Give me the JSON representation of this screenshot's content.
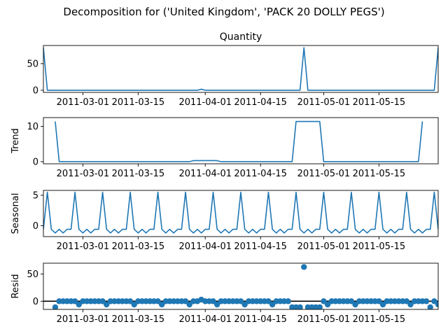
{
  "chart_data": {
    "type": "line",
    "suptitle": "Decomposition for ('United Kingdom', 'PACK 20 DOLLY PEGS')",
    "panels": [
      {
        "key": "observed",
        "title": "Quantity",
        "ylabel": "",
        "kind": "line",
        "ylim": [
          -4,
          84
        ],
        "yticks": [
          0,
          50
        ],
        "ytick_labels": [
          "0",
          "50"
        ],
        "baseline": false,
        "points": [
          [
            "2011-02-19",
            80
          ],
          [
            "2011-02-20",
            0
          ],
          [
            "2011-03-30",
            0
          ],
          [
            "2011-03-31",
            2
          ],
          [
            "2011-04-01",
            0
          ],
          [
            "2011-04-25",
            0
          ],
          [
            "2011-04-26",
            80
          ],
          [
            "2011-04-27",
            0
          ],
          [
            "2011-05-29",
            0
          ],
          [
            "2011-05-30",
            80
          ]
        ]
      },
      {
        "key": "trend",
        "title": "",
        "ylabel": "Trend",
        "kind": "line",
        "ylim": [
          -0.6,
          12.5
        ],
        "yticks": [
          0,
          10
        ],
        "ytick_labels": [
          "0",
          "10"
        ],
        "baseline": false,
        "points": [
          [
            "2011-02-22",
            11.4
          ],
          [
            "2011-02-23",
            0
          ],
          [
            "2011-03-28",
            0
          ],
          [
            "2011-03-29",
            0.3
          ],
          [
            "2011-04-04",
            0.3
          ],
          [
            "2011-04-05",
            0
          ],
          [
            "2011-04-23",
            0
          ],
          [
            "2011-04-24",
            11.4
          ],
          [
            "2011-04-30",
            11.4
          ],
          [
            "2011-05-01",
            0
          ],
          [
            "2011-05-25",
            0
          ],
          [
            "2011-05-26",
            11.4
          ]
        ]
      },
      {
        "key": "seasonal",
        "title": "",
        "ylabel": "Seasonal",
        "kind": "line",
        "ylim": [
          -1.8,
          5.8
        ],
        "yticks": [
          0,
          5
        ],
        "ytick_labels": [
          "0",
          "5"
        ],
        "baseline": false,
        "start": "2011-02-19",
        "end": "2011-05-30",
        "pattern": [
          -0.6,
          5.5,
          -0.6,
          -1.2,
          -0.6,
          -1.2,
          -0.6
        ]
      },
      {
        "key": "resid",
        "title": "",
        "ylabel": "Resid",
        "kind": "scatter",
        "ylim": [
          -15,
          70
        ],
        "yticks": [
          0,
          50
        ],
        "ytick_labels": [
          "0",
          "50"
        ],
        "baseline": true,
        "start": "2011-02-22",
        "end": "2011-05-26",
        "sequence": [
          -11,
          0,
          0,
          0,
          0,
          0,
          -6,
          0,
          0,
          0,
          0,
          0,
          0,
          -6,
          0,
          0,
          0,
          0,
          0,
          0,
          -6,
          0,
          0,
          0,
          0,
          0,
          0,
          -6,
          0,
          0,
          0,
          0,
          0,
          0,
          -6,
          0,
          0,
          0,
          0,
          0,
          0,
          -6,
          0,
          0,
          0,
          0,
          0,
          0,
          -6,
          0,
          0,
          0,
          0,
          0,
          0,
          -6,
          0,
          0,
          0,
          0,
          0,
          0,
          -6,
          0,
          0,
          0,
          0,
          0,
          0,
          -6,
          0,
          0,
          0,
          0,
          0,
          0,
          -6,
          0,
          0,
          0,
          0,
          0,
          0,
          -6,
          0,
          0,
          0,
          0,
          0,
          0,
          -6,
          0,
          0,
          0,
          0,
          0,
          0,
          -6
        ],
        "overrides": [
          [
            "2011-03-31",
            3
          ],
          [
            "2011-04-23",
            -11
          ],
          [
            "2011-04-24",
            -11
          ],
          [
            "2011-04-25",
            -11
          ],
          [
            "2011-04-26",
            63
          ],
          [
            "2011-04-27",
            -11
          ],
          [
            "2011-04-28",
            -11
          ],
          [
            "2011-04-29",
            -11
          ],
          [
            "2011-04-30",
            -11
          ],
          [
            "2011-05-28",
            -11
          ]
        ]
      }
    ],
    "x_axis": {
      "range": [
        "2011-02-19",
        "2011-05-30"
      ],
      "ticks": [
        "2011-03-01",
        "2011-03-15",
        "2011-04-01",
        "2011-04-15",
        "2011-05-01",
        "2011-05-15"
      ]
    },
    "colors": {
      "series": "#1f77b4",
      "axis": "#000000",
      "baseline": "#000000"
    }
  }
}
